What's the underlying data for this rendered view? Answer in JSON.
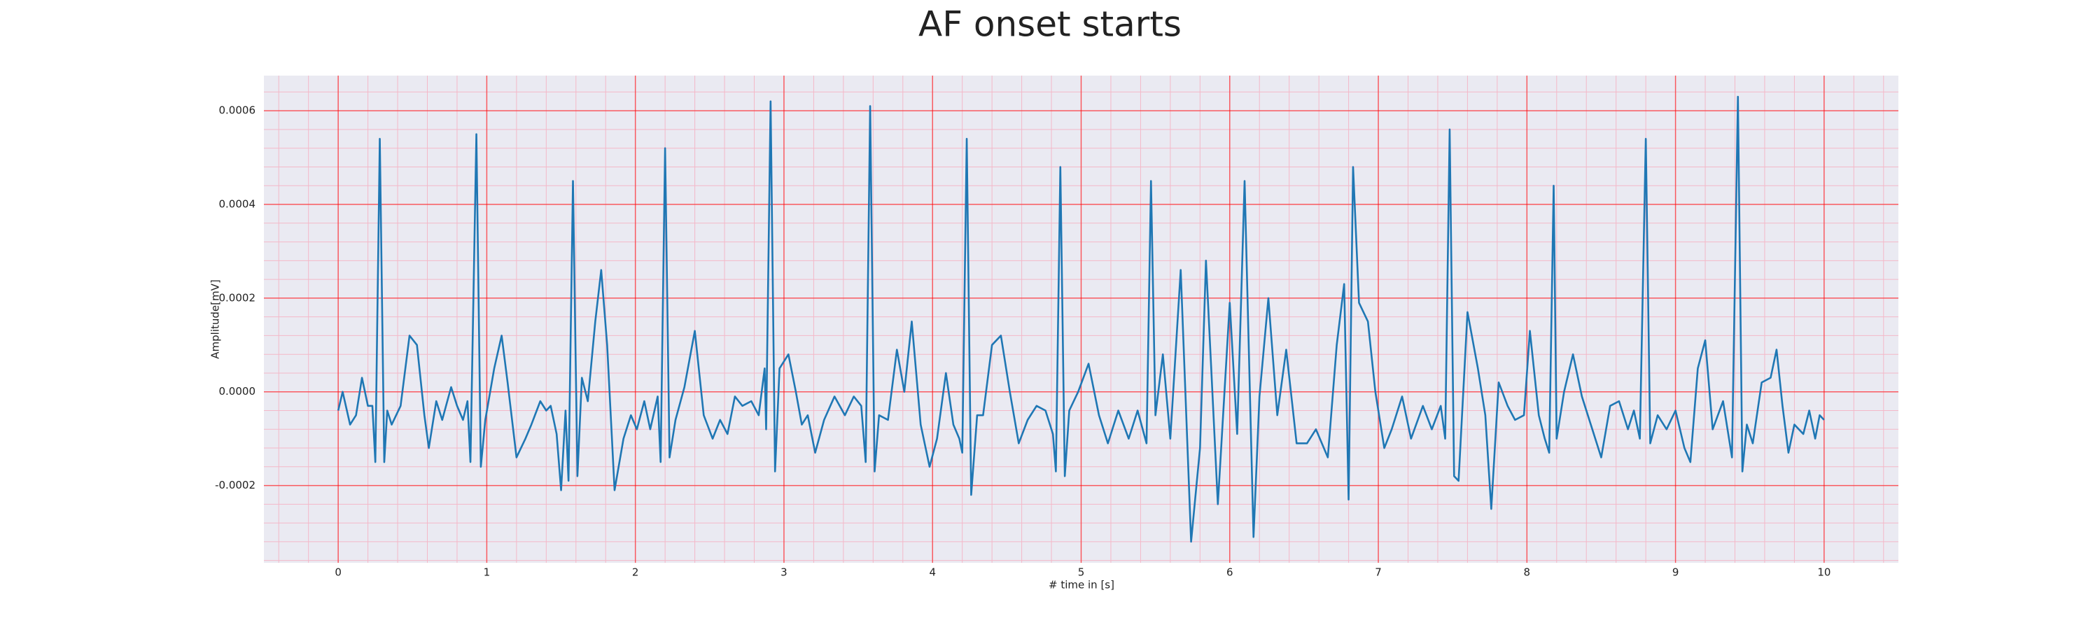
{
  "chart_data": {
    "type": "line",
    "title": "AF onset starts",
    "xlabel": "# time in [s]",
    "ylabel": "Amplitude[mV]",
    "x": [
      0.0,
      0.03,
      0.08,
      0.12,
      0.16,
      0.2,
      0.23,
      0.25,
      0.28,
      0.31,
      0.33,
      0.36,
      0.42,
      0.48,
      0.53,
      0.58,
      0.61,
      0.66,
      0.7,
      0.76,
      0.8,
      0.84,
      0.87,
      0.89,
      0.93,
      0.96,
      0.99,
      1.05,
      1.1,
      1.14,
      1.2,
      1.26,
      1.3,
      1.36,
      1.4,
      1.43,
      1.47,
      1.5,
      1.53,
      1.55,
      1.58,
      1.61,
      1.64,
      1.68,
      1.73,
      1.77,
      1.81,
      1.86,
      1.92,
      1.97,
      2.01,
      2.06,
      2.1,
      2.15,
      2.17,
      2.2,
      2.23,
      2.27,
      2.33,
      2.4,
      2.46,
      2.52,
      2.57,
      2.62,
      2.67,
      2.72,
      2.78,
      2.83,
      2.87,
      2.88,
      2.91,
      2.94,
      2.97,
      3.03,
      3.08,
      3.12,
      3.16,
      3.21,
      3.27,
      3.34,
      3.41,
      3.47,
      3.52,
      3.55,
      3.58,
      3.61,
      3.64,
      3.7,
      3.76,
      3.81,
      3.86,
      3.92,
      3.98,
      4.03,
      4.09,
      4.14,
      4.18,
      4.2,
      4.23,
      4.26,
      4.3,
      4.34,
      4.4,
      4.46,
      4.52,
      4.58,
      4.64,
      4.7,
      4.76,
      4.81,
      4.83,
      4.86,
      4.89,
      4.92,
      4.98,
      5.05,
      5.12,
      5.18,
      5.25,
      5.32,
      5.38,
      5.44,
      5.47,
      5.5,
      5.55,
      5.6,
      5.67,
      5.74,
      5.8,
      5.84,
      5.92,
      6.0,
      6.05,
      6.1,
      6.16,
      6.2,
      6.26,
      6.32,
      6.38,
      6.45,
      6.52,
      6.58,
      6.66,
      6.72,
      6.77,
      6.8,
      6.83,
      6.87,
      6.93,
      6.98,
      7.04,
      7.09,
      7.16,
      7.22,
      7.3,
      7.36,
      7.42,
      7.45,
      7.48,
      7.51,
      7.54,
      7.6,
      7.67,
      7.72,
      7.76,
      7.81,
      7.87,
      7.92,
      7.98,
      8.02,
      8.08,
      8.12,
      8.15,
      8.18,
      8.2,
      8.25,
      8.31,
      8.37,
      8.43,
      8.5,
      8.56,
      8.62,
      8.68,
      8.72,
      8.76,
      8.8,
      8.83,
      8.88,
      8.94,
      9.0,
      9.06,
      9.1,
      9.15,
      9.2,
      9.25,
      9.32,
      9.38,
      9.42,
      9.45,
      9.48,
      9.52,
      9.58,
      9.64,
      9.68,
      9.72,
      9.76,
      9.8,
      9.86,
      9.9,
      9.94,
      9.97,
      10.0
    ],
    "values": [
      -4e-05,
      0,
      -7e-05,
      -5e-05,
      3e-05,
      -3e-05,
      -3e-05,
      -0.00015,
      0.00054,
      -0.00015,
      -4e-05,
      -7e-05,
      -3e-05,
      0.00012,
      0.0001,
      -5e-05,
      -0.00012,
      -2e-05,
      -6e-05,
      1e-05,
      -3e-05,
      -6e-05,
      -2e-05,
      -0.00015,
      0.00055,
      -0.00016,
      -6e-05,
      5e-05,
      0.00012,
      2e-05,
      -0.00014,
      -0.0001,
      -7e-05,
      -2e-05,
      -4e-05,
      -3e-05,
      -9e-05,
      -0.00021,
      -4e-05,
      -0.00019,
      0.00045,
      -0.00018,
      3e-05,
      -2e-05,
      0.00015,
      0.00026,
      0.0001,
      -0.00021,
      -0.0001,
      -5e-05,
      -8e-05,
      -2e-05,
      -8e-05,
      -1e-05,
      -0.00015,
      0.00052,
      -0.00014,
      -6e-05,
      1e-05,
      0.00013,
      -5e-05,
      -0.0001,
      -6e-05,
      -9e-05,
      -1e-05,
      -3e-05,
      -2e-05,
      -5e-05,
      5e-05,
      -8e-05,
      0.00062,
      -0.00017,
      5e-05,
      8e-05,
      0,
      -7e-05,
      -5e-05,
      -0.00013,
      -6e-05,
      -1e-05,
      -5e-05,
      -1e-05,
      -3e-05,
      -0.00015,
      0.00061,
      -0.00017,
      -5e-05,
      -6e-05,
      9e-05,
      0,
      0.00015,
      -7e-05,
      -0.00016,
      -0.0001,
      4e-05,
      -7e-05,
      -0.0001,
      -0.00013,
      0.00054,
      -0.00022,
      -5e-05,
      -5e-05,
      0.0001,
      0.00012,
      0,
      -0.00011,
      -6e-05,
      -3e-05,
      -4e-05,
      -9e-05,
      -0.00017,
      0.00048,
      -0.00018,
      -4e-05,
      0,
      6e-05,
      -5e-05,
      -0.00011,
      -4e-05,
      -0.0001,
      -4e-05,
      -0.00011,
      0.00045,
      -5e-05,
      8e-05,
      -0.0001,
      0.00026,
      -0.00032,
      -0.00012,
      0.00028,
      -0.00024,
      0.00019,
      -9e-05,
      0.00045,
      -0.00031,
      -1e-05,
      0.0002,
      -5e-05,
      9e-05,
      -0.00011,
      -0.00011,
      -8e-05,
      -0.00014,
      0.0001,
      0.00023,
      -0.00023,
      0.00048,
      0.00019,
      0.00015,
      0,
      -0.00012,
      -8e-05,
      -1e-05,
      -0.0001,
      -3e-05,
      -8e-05,
      -3e-05,
      -0.0001,
      0.00056,
      -0.00018,
      -0.00019,
      0.00017,
      5e-05,
      -5e-05,
      -0.00025,
      2e-05,
      -3e-05,
      -6e-05,
      -5e-05,
      0.00013,
      -5e-05,
      -0.0001,
      -0.00013,
      0.00044,
      -0.0001,
      0,
      8e-05,
      -1e-05,
      -7e-05,
      -0.00014,
      -3e-05,
      -2e-05,
      -8e-05,
      -4e-05,
      -0.0001,
      0.00054,
      -0.00011,
      -5e-05,
      -8e-05,
      -4e-05,
      -0.00012,
      -0.00015,
      5e-05,
      0.00011,
      -8e-05,
      -2e-05,
      -0.00014,
      0.00063,
      -0.00017,
      -7e-05,
      -0.00011,
      2e-05,
      3e-05,
      9e-05,
      -3e-05,
      -0.00013,
      -7e-05,
      -9e-05,
      -4e-05,
      -0.0001,
      -5e-05,
      -6e-05
    ],
    "color": "#1f77b4",
    "xlim": [
      -0.5,
      10.5
    ],
    "xticks": [
      0,
      1,
      2,
      3,
      4,
      5,
      6,
      7,
      8,
      9,
      10
    ],
    "ylim": [
      -0.000365,
      0.000675
    ],
    "yticks": [
      -0.0002,
      {
        "value": 0,
        "label": "0.0000"
      },
      0.0002,
      0.0004,
      0.0006
    ],
    "grid": true,
    "grid_color": "#ff0000",
    "minor_grid": true,
    "minor_grid_color": "#f4b8c8",
    "minor_divisions": 5,
    "background": "#eaeaf2"
  }
}
